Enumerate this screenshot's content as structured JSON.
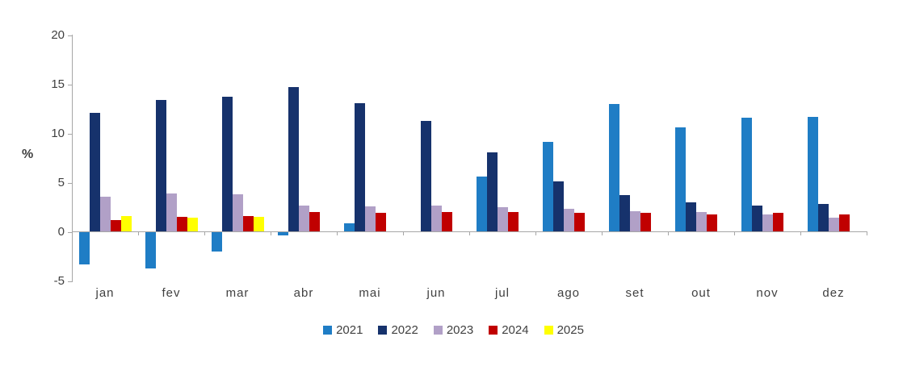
{
  "chart": {
    "percent_label": "%",
    "axis_color": "#a6a6a6",
    "text_color": "#404040",
    "background": "#ffffff"
  },
  "chart_data": {
    "type": "bar",
    "title": "",
    "xlabel": "",
    "ylabel": "%",
    "ylim": [
      -5,
      20
    ],
    "yticks": [
      20,
      15,
      10,
      5,
      0,
      -5
    ],
    "grid": false,
    "legend_position": "bottom",
    "categories": [
      "jan",
      "fev",
      "mar",
      "abr",
      "mai",
      "jun",
      "jul",
      "ago",
      "set",
      "out",
      "nov",
      "dez"
    ],
    "series": [
      {
        "name": "2021",
        "color": "#1f7dc5",
        "values": [
          -3.3,
          -3.7,
          -2.0,
          -0.4,
          0.9,
          null,
          5.6,
          9.1,
          13.0,
          10.6,
          11.6,
          11.7
        ]
      },
      {
        "name": "2022",
        "color": "#16326c",
        "values": [
          12.1,
          13.4,
          13.7,
          14.7,
          13.1,
          11.3,
          8.1,
          5.1,
          3.7,
          3.0,
          2.7,
          2.8
        ]
      },
      {
        "name": "2023",
        "color": "#b1a0c7",
        "values": [
          3.6,
          3.9,
          3.8,
          2.7,
          2.6,
          2.7,
          2.5,
          2.3,
          2.1,
          2.0,
          1.8,
          1.4
        ]
      },
      {
        "name": "2024",
        "color": "#c00000",
        "values": [
          1.2,
          1.5,
          1.6,
          2.0,
          1.9,
          2.0,
          2.0,
          1.9,
          1.9,
          1.8,
          1.9,
          1.8
        ]
      },
      {
        "name": "2025",
        "color": "#ffff00",
        "values": [
          1.6,
          1.4,
          1.5,
          null,
          null,
          null,
          null,
          null,
          null,
          null,
          null,
          null
        ]
      }
    ]
  }
}
